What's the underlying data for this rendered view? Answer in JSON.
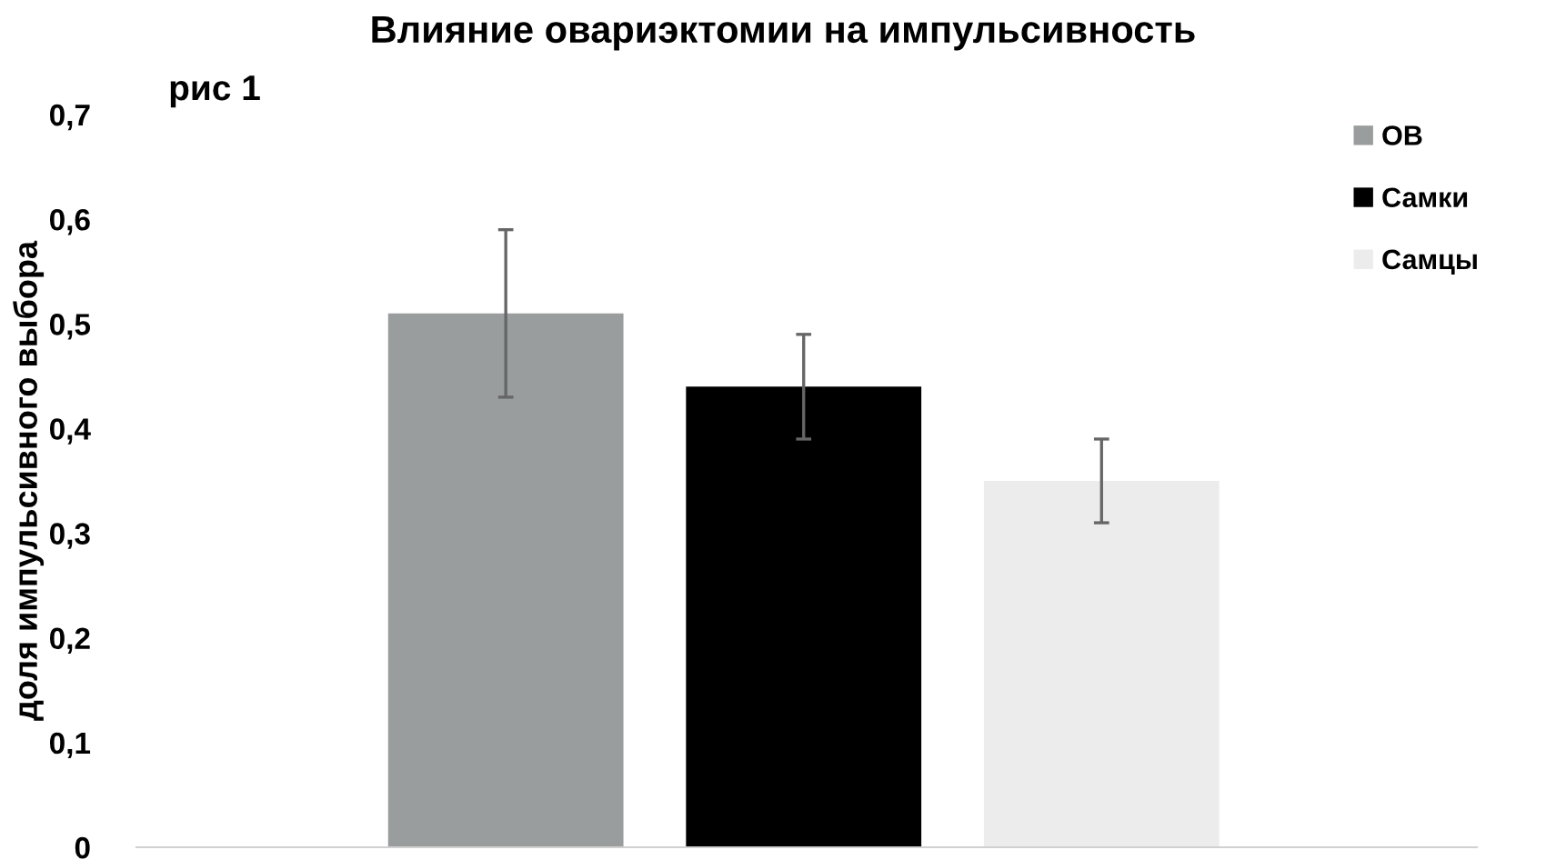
{
  "chart_data": {
    "type": "bar",
    "title": "Влияние овариэктомии на импульсивность",
    "ylabel": "доля импульсивного выбора",
    "annotations": [
      "рис 1"
    ],
    "categories": [
      null
    ],
    "series": [
      {
        "name": "ОВ",
        "color": "#9a9d9d",
        "values": [
          0.51
        ],
        "errors": [
          0.08
        ]
      },
      {
        "name": "Самки",
        "color": "#000000",
        "values": [
          0.44
        ],
        "errors": [
          0.05
        ]
      },
      {
        "name": "Самцы",
        "color": "#ececec",
        "values": [
          0.35
        ],
        "errors": [
          0.04
        ]
      }
    ],
    "ylim": [
      0,
      0.7
    ],
    "yticks": [
      {
        "value": 0,
        "label": "0"
      },
      {
        "value": 0.1,
        "label": "0,1"
      },
      {
        "value": 0.2,
        "label": "0,2"
      },
      {
        "value": 0.3,
        "label": "0,3"
      },
      {
        "value": 0.4,
        "label": "0,4"
      },
      {
        "value": 0.5,
        "label": "0,5"
      },
      {
        "value": 0.6,
        "label": "0,6"
      },
      {
        "value": 0.7,
        "label": "0,7"
      }
    ],
    "grid": false,
    "legend": "top right"
  }
}
